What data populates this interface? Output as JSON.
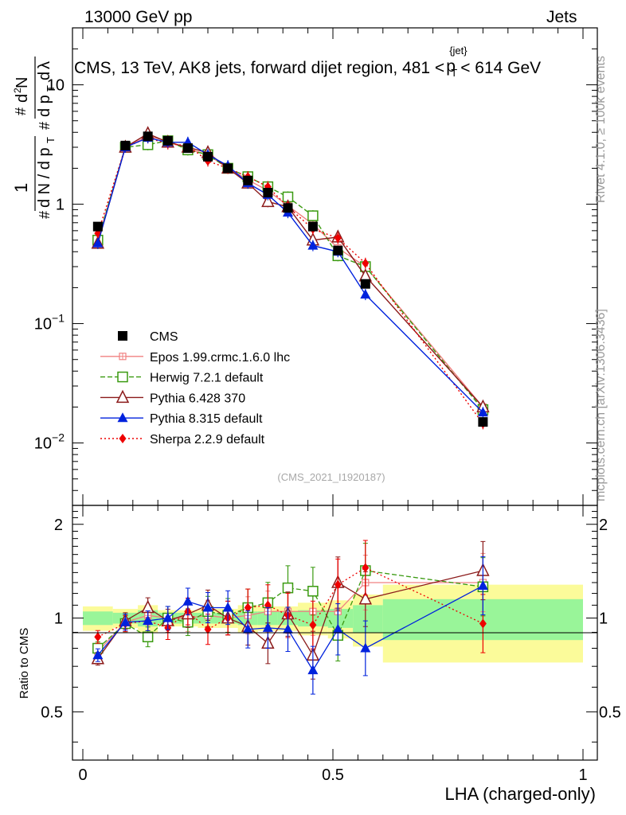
{
  "header": {
    "left": "13000 GeV pp",
    "right": "Jets"
  },
  "side_labels": {
    "rivet": "Rivet 4.1.0, ≥ 100k events",
    "mcplots": "mcplots.cern.ch [arXiv:1306.3436]"
  },
  "title": {
    "main": "CMS, 13 TeV, AK8 jets, forward dijet region, 481 <",
    "p": "p",
    "T": "T",
    "jet": "{jet}",
    "tail": "< 614 GeV"
  },
  "analysis_id": "(CMS_2021_I1920187)",
  "xlabel": "LHA (charged-only)",
  "ylabel_ratio": "Ratio to CMS",
  "colors": {
    "cms": "#000000",
    "epos": "#f08080",
    "herwig": "#3a9a10",
    "pythia6": "#8b1a1a",
    "pythia8": "#0022dd",
    "sherpa": "#ee0000",
    "band_inner": "#99f599",
    "band_outer": "#fbfb9a"
  },
  "chart_data": {
    "type": "scatter",
    "title": "CMS, 13 TeV, AK8 jets, forward dijet region, 481 < p_T^{jet} < 614 GeV",
    "xlabel": "LHA (charged-only)",
    "ylabel": "1/(dN/dpT) d²N/(dpT dλ)",
    "xlim": [
      0,
      1
    ],
    "ylim": [
      0.003,
      30
    ],
    "yscale": "log",
    "x_ticks": [
      "0",
      "0.5",
      "1"
    ],
    "y_ticks": [
      "10^{-2}",
      "10^{-1}",
      "1",
      "10"
    ],
    "ratio_ylim": [
      0.35,
      2.3
    ],
    "ratio_ticks": [
      "0.5",
      "1",
      "2"
    ],
    "ratio_ylabel": "Ratio to CMS",
    "legend_position": "middle-left",
    "x": [
      0.03,
      0.085,
      0.13,
      0.17,
      0.21,
      0.25,
      0.29,
      0.33,
      0.37,
      0.41,
      0.46,
      0.51,
      0.565,
      0.8
    ],
    "bin_edges": [
      0,
      0.06,
      0.11,
      0.15,
      0.19,
      0.23,
      0.27,
      0.31,
      0.35,
      0.39,
      0.43,
      0.49,
      0.54,
      0.6,
      1.0
    ],
    "band_outer": [
      0.09,
      0.07,
      0.1,
      0.06,
      0.06,
      0.07,
      0.07,
      0.1,
      0.09,
      0.09,
      0.12,
      0.14,
      0.19,
      0.28
    ],
    "band_inner": [
      0.05,
      0.04,
      0.06,
      0.04,
      0.04,
      0.04,
      0.04,
      0.05,
      0.05,
      0.05,
      0.06,
      0.07,
      0.1,
      0.15
    ],
    "series": [
      {
        "name": "CMS",
        "key": "cms",
        "marker": "square",
        "style": "none",
        "values": [
          0.65,
          3.1,
          3.7,
          3.4,
          2.95,
          2.5,
          2.0,
          1.58,
          1.25,
          0.93,
          0.65,
          0.41,
          0.215,
          0.015
        ]
      },
      {
        "name": "Epos 1.99.crmc.1.6.0 lhc",
        "key": "epos",
        "marker": "cross",
        "style": "solid",
        "values": [
          0.5,
          3.0,
          3.7,
          3.4,
          2.9,
          2.6,
          2.0,
          1.6,
          1.3,
          0.97,
          0.68,
          0.43,
          0.3,
          0.02
        ],
        "ratio": [
          0.78,
          0.97,
          1.02,
          1.0,
          1.0,
          1.02,
          1.0,
          1.02,
          1.05,
          1.05,
          1.05,
          1.05,
          1.3,
          1.3
        ]
      },
      {
        "name": "Herwig 7.2.1 default",
        "key": "herwig",
        "marker": "open-square",
        "style": "dashed",
        "values": [
          0.5,
          3.0,
          3.15,
          3.4,
          2.85,
          2.6,
          2.0,
          1.7,
          1.4,
          1.15,
          0.8,
          0.37,
          0.3,
          0.019
        ],
        "ratio": [
          0.8,
          0.96,
          0.87,
          1.0,
          0.97,
          1.05,
          1.02,
          1.08,
          1.12,
          1.25,
          1.22,
          0.88,
          1.42,
          1.26
        ]
      },
      {
        "name": "Pythia 6.428 370",
        "key": "pythia6",
        "marker": "open-triangle",
        "style": "solid",
        "values": [
          0.47,
          3.0,
          3.9,
          3.3,
          3.0,
          2.7,
          2.0,
          1.5,
          1.05,
          0.95,
          0.5,
          0.53,
          0.25,
          0.02
        ],
        "ratio": [
          0.74,
          0.98,
          1.08,
          0.98,
          1.03,
          1.1,
          1.0,
          0.94,
          0.83,
          1.03,
          0.76,
          1.3,
          1.15,
          1.42
        ]
      },
      {
        "name": "Pythia 8.315 default",
        "key": "pythia8",
        "marker": "triangle",
        "style": "solid",
        "values": [
          0.47,
          3.0,
          3.6,
          3.3,
          3.3,
          2.6,
          2.1,
          1.5,
          1.2,
          0.85,
          0.45,
          0.4,
          0.175,
          0.018
        ],
        "ratio": [
          0.76,
          0.97,
          0.98,
          1.0,
          1.13,
          1.08,
          1.08,
          0.92,
          0.93,
          0.92,
          0.68,
          0.92,
          0.8,
          1.27
        ]
      },
      {
        "name": "Sherpa 2.2.9 default",
        "key": "sherpa",
        "marker": "diamond",
        "style": "dotted",
        "values": [
          0.57,
          3.0,
          3.6,
          3.2,
          3.1,
          2.3,
          2.0,
          1.7,
          1.4,
          0.95,
          0.62,
          0.52,
          0.32,
          0.0145
        ],
        "ratio": [
          0.87,
          0.96,
          0.98,
          0.93,
          1.05,
          0.92,
          1.0,
          1.08,
          1.1,
          1.02,
          0.95,
          1.28,
          1.45,
          0.96
        ]
      }
    ]
  }
}
